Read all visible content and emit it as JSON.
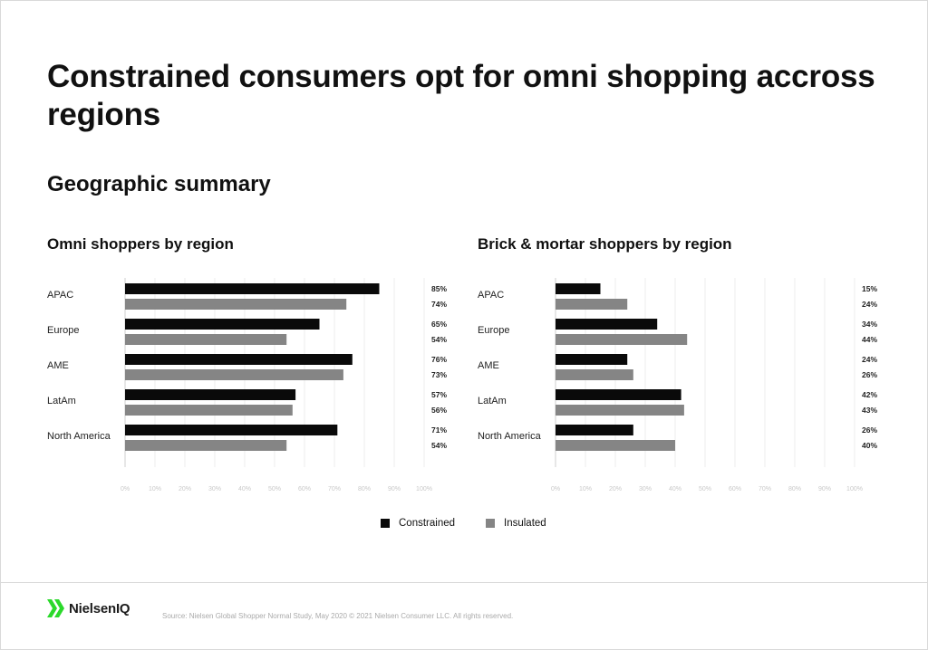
{
  "page": {
    "title": "Constrained consumers opt for omni shopping accross regions",
    "subtitle": "Geographic summary",
    "source": "Source: Nielsen Global Shopper Normal Study, May 2020 © 2021 Nielsen Consumer LLC. All rights reserved.",
    "logo_text": "NielsenIQ"
  },
  "colors": {
    "constrained": "#0a0a0a",
    "insulated": "#858585",
    "grid": "#ececec",
    "logo_green": "#2bd92b"
  },
  "legend": [
    {
      "name": "Constrained",
      "color": "#0a0a0a"
    },
    {
      "name": "Insulated",
      "color": "#858585"
    }
  ],
  "chart_data": [
    {
      "type": "bar",
      "orientation": "horizontal",
      "title": "Omni shoppers by region",
      "categories": [
        "APAC",
        "Europe",
        "AME",
        "LatAm",
        "North America"
      ],
      "series": [
        {
          "name": "Constrained",
          "values": [
            85,
            65,
            76,
            57,
            71
          ],
          "labels": [
            "85%",
            "65%",
            "76%",
            "57%",
            "71%"
          ]
        },
        {
          "name": "Insulated",
          "values": [
            74,
            54,
            73,
            56,
            54
          ],
          "labels": [
            "74%",
            "54%",
            "73%",
            "56%",
            "54%"
          ]
        }
      ],
      "xlim": [
        0,
        100
      ],
      "ticks": [
        "0%",
        "10%",
        "20%",
        "30%",
        "40%",
        "50%",
        "60%",
        "70%",
        "80%",
        "90%",
        "100%"
      ],
      "grid": true
    },
    {
      "type": "bar",
      "orientation": "horizontal",
      "title": "Brick & mortar shoppers by region",
      "categories": [
        "APAC",
        "Europe",
        "AME",
        "LatAm",
        "North America"
      ],
      "series": [
        {
          "name": "Constrained",
          "values": [
            15,
            34,
            24,
            42,
            26
          ],
          "labels": [
            "15%",
            "34%",
            "24%",
            "42%",
            "26%"
          ]
        },
        {
          "name": "Insulated",
          "values": [
            24,
            44,
            26,
            43,
            40
          ],
          "labels": [
            "24%",
            "44%",
            "26%",
            "43%",
            "40%"
          ]
        }
      ],
      "xlim": [
        0,
        100
      ],
      "ticks": [
        "0%",
        "10%",
        "20%",
        "30%",
        "40%",
        "50%",
        "60%",
        "70%",
        "80%",
        "90%",
        "100%"
      ],
      "grid": true
    }
  ]
}
